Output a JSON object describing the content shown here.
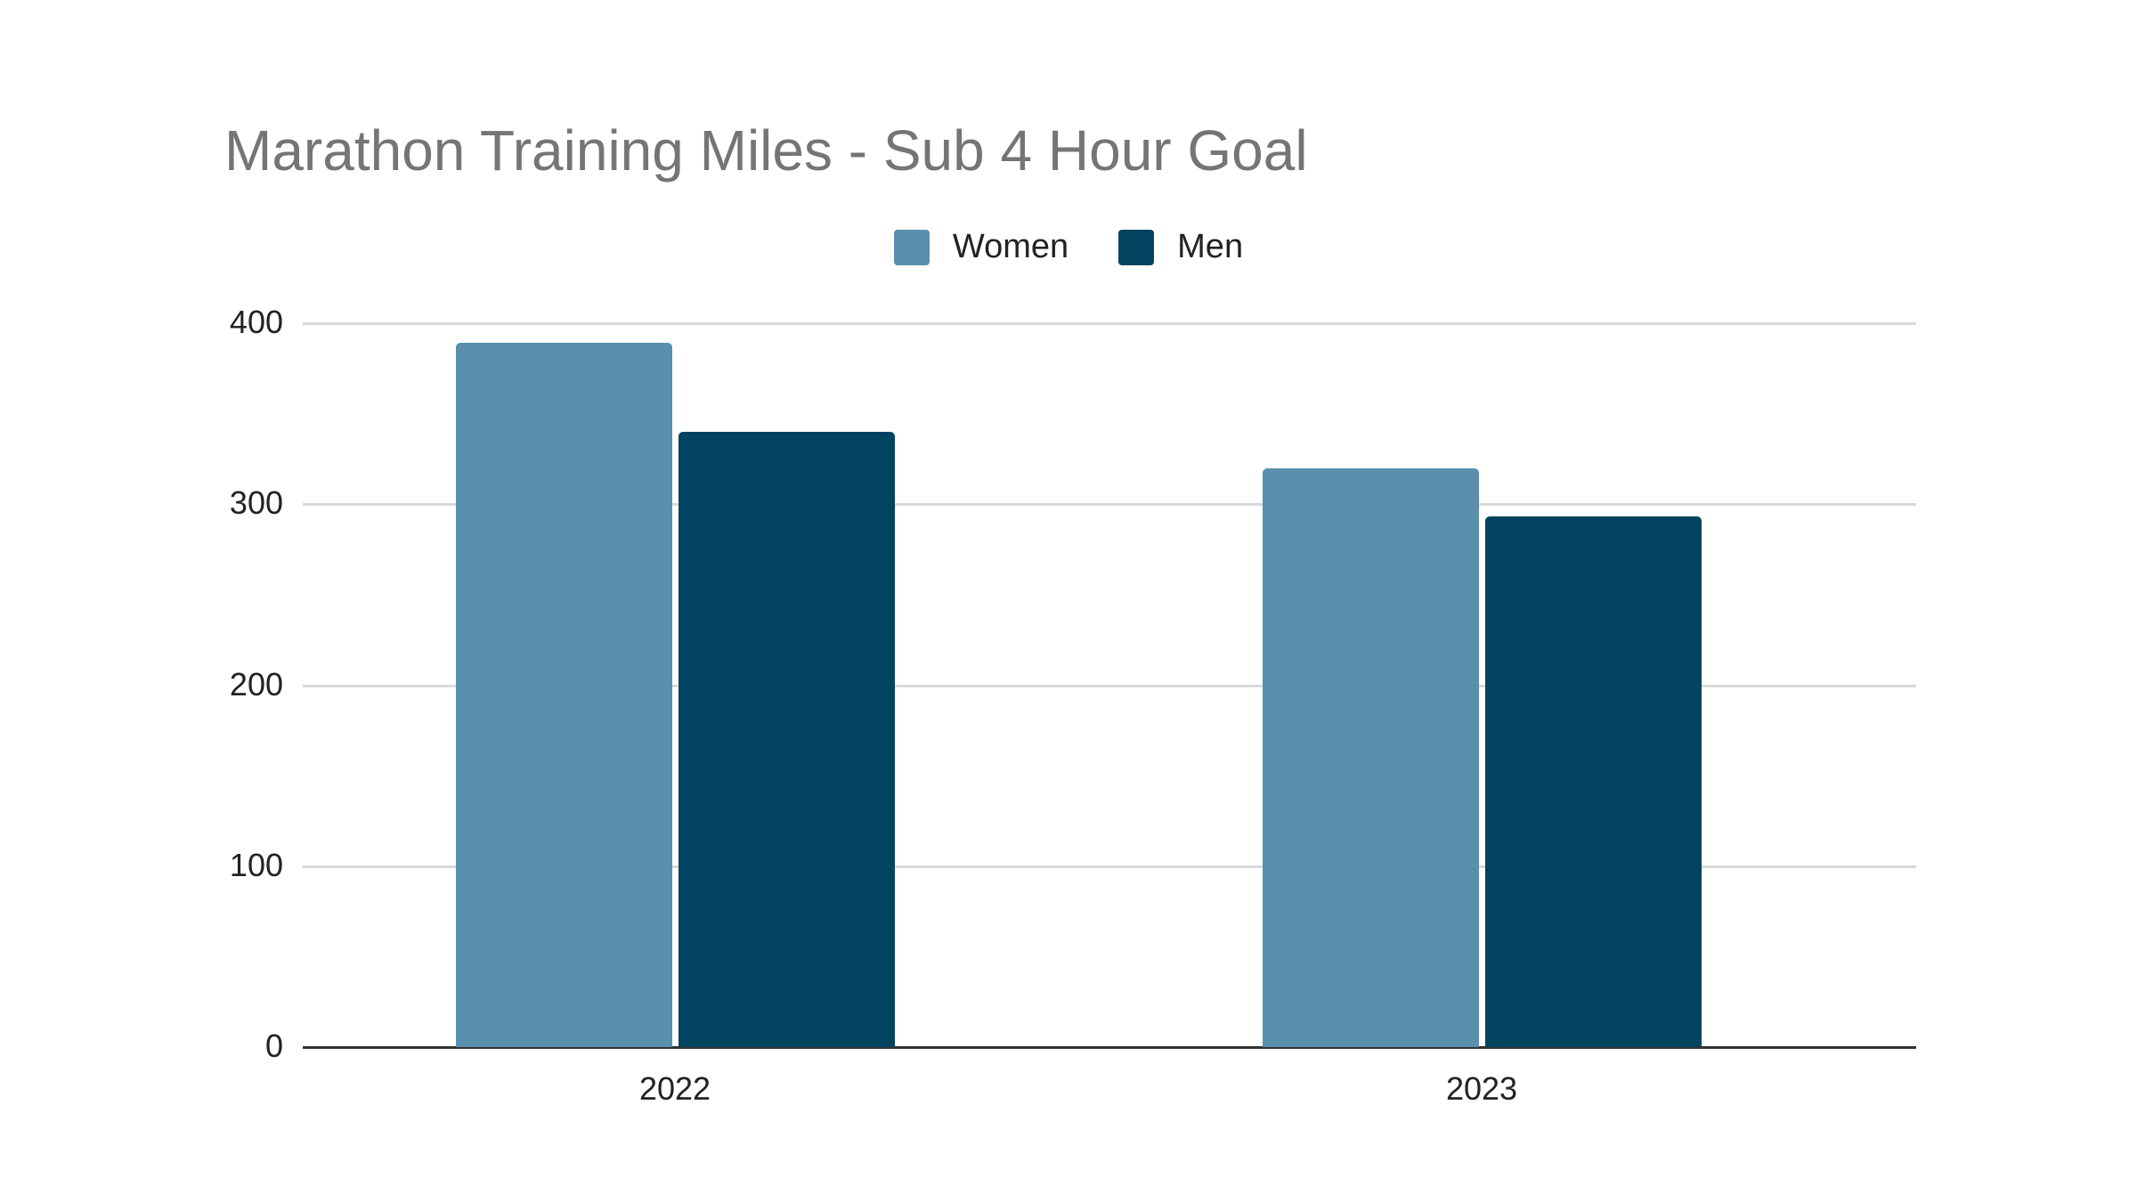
{
  "chart_data": {
    "type": "bar",
    "title": "Marathon Training Miles - Sub 4 Hour Goal",
    "categories": [
      "2022",
      "2023"
    ],
    "series": [
      {
        "name": "Women",
        "values": [
          389,
          320
        ],
        "color": "#5a8fae"
      },
      {
        "name": "Men",
        "values": [
          340,
          293
        ],
        "color": "#02445f"
      }
    ],
    "xlabel": "",
    "ylabel": "",
    "ylim": [
      0,
      400
    ],
    "yticks": [
      "0",
      "100",
      "200",
      "300",
      "400"
    ],
    "grid": true,
    "legend_position": "top"
  },
  "title": "Marathon Training Miles - Sub 4 Hour Goal",
  "legend": [
    {
      "label": "Women",
      "color": "#5a8fae"
    },
    {
      "label": "Men",
      "color": "#02445f"
    }
  ]
}
